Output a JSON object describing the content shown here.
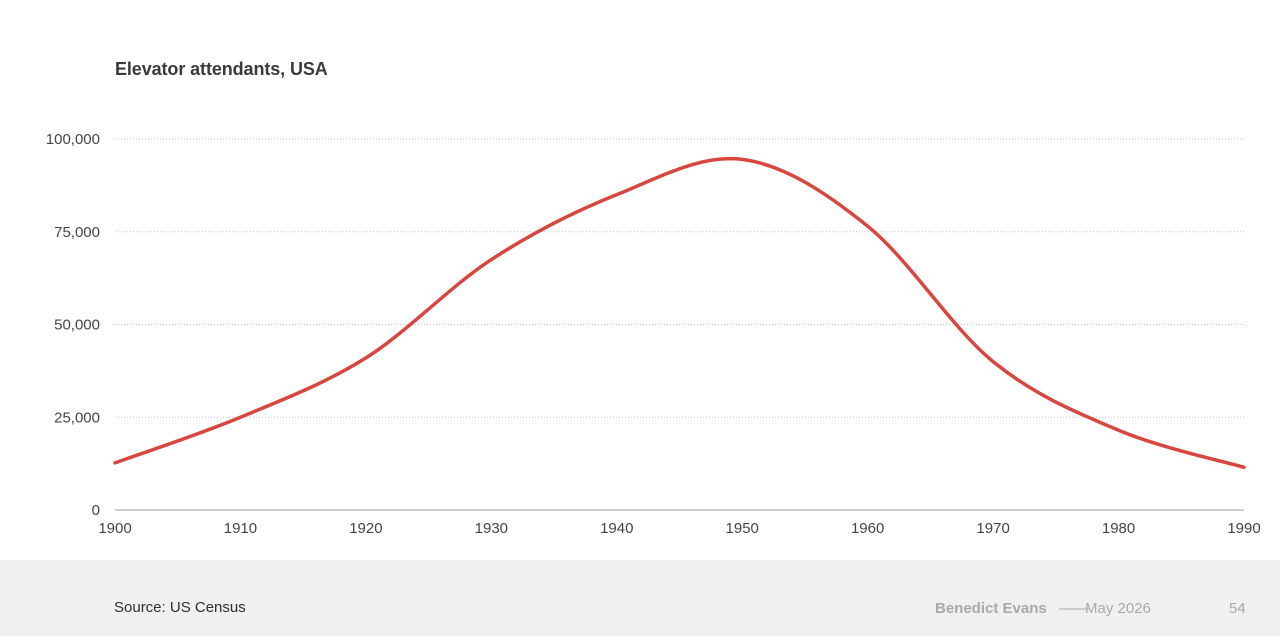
{
  "chart_data": {
    "type": "line",
    "title": "Elevator attendants, USA",
    "xlabel": "",
    "ylabel": "",
    "x": [
      1900,
      1910,
      1920,
      1930,
      1940,
      1950,
      1960,
      1970,
      1980,
      1990
    ],
    "series": [
      {
        "values": [
          12700,
          25000,
          41000,
          67500,
          85000,
          94500,
          76500,
          40000,
          21500,
          11500
        ]
      }
    ],
    "xlim": [
      1900,
      1990
    ],
    "ylim": [
      0,
      100000
    ],
    "x_ticks": [
      "1900",
      "1910",
      "1920",
      "1930",
      "1940",
      "1950",
      "1960",
      "1970",
      "1980",
      "1990"
    ],
    "y_ticks": [
      {
        "value": 0,
        "label": "0"
      },
      {
        "value": 25000,
        "label": "25,000"
      },
      {
        "value": 50000,
        "label": "50,000"
      },
      {
        "value": 75000,
        "label": "75,000"
      },
      {
        "value": 100000,
        "label": "100,000"
      }
    ],
    "grid": "horizontal-dotted",
    "line_color": "#d9463e"
  },
  "footer": {
    "source": "Source: US Census",
    "brand": "Benedict Evans",
    "separator": "——",
    "date": "May 2026",
    "page": "54"
  }
}
